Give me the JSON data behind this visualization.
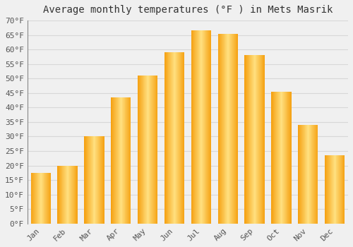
{
  "title": "Average monthly temperatures (°F ) in Mets Masrik",
  "months": [
    "Jan",
    "Feb",
    "Mar",
    "Apr",
    "May",
    "Jun",
    "Jul",
    "Aug",
    "Sep",
    "Oct",
    "Nov",
    "Dec"
  ],
  "values": [
    17.5,
    20.0,
    30.2,
    43.5,
    51.0,
    59.0,
    66.5,
    65.5,
    58.0,
    45.5,
    34.0,
    23.5
  ],
  "bar_color_left": "#F5A623",
  "bar_color_mid": "#FFCC55",
  "bar_color_right": "#E8900A",
  "ylim": [
    0,
    70
  ],
  "yticks": [
    0,
    5,
    10,
    15,
    20,
    25,
    30,
    35,
    40,
    45,
    50,
    55,
    60,
    65,
    70
  ],
  "ylabel_suffix": "°F",
  "background_color": "#f0f0f0",
  "grid_color": "#d8d8d8",
  "title_fontsize": 10,
  "tick_fontsize": 8,
  "font_family": "monospace"
}
